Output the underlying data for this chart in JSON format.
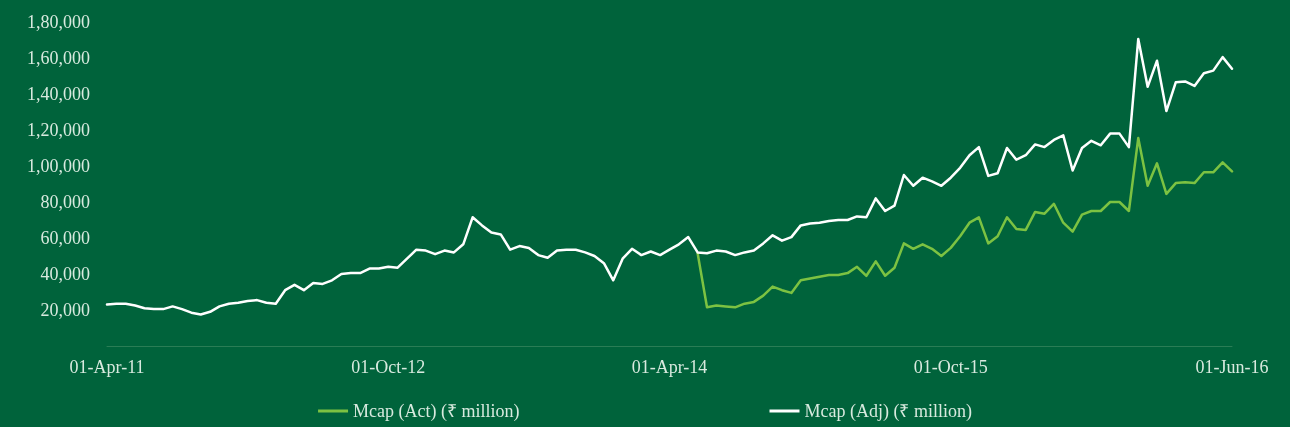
{
  "chart_data": {
    "type": "line",
    "categories": [
      "01-Apr-11",
      null,
      null,
      null,
      null,
      null,
      null,
      null,
      null,
      null,
      null,
      null,
      null,
      null,
      null,
      null,
      null,
      null,
      null,
      null,
      null,
      null,
      null,
      null,
      null,
      null,
      null,
      null,
      null,
      null,
      "01-Oct-12",
      null,
      null,
      null,
      null,
      null,
      null,
      null,
      null,
      null,
      null,
      null,
      null,
      null,
      null,
      null,
      null,
      null,
      null,
      null,
      null,
      null,
      null,
      null,
      null,
      null,
      null,
      null,
      null,
      null,
      "01-Apr-14",
      null,
      null,
      null,
      null,
      null,
      null,
      null,
      null,
      null,
      null,
      null,
      null,
      null,
      null,
      null,
      null,
      null,
      null,
      null,
      null,
      null,
      null,
      null,
      null,
      null,
      null,
      null,
      null,
      null,
      "01-Oct-15",
      null,
      null,
      null,
      null,
      null,
      null,
      null,
      null,
      null,
      null,
      null,
      null,
      null,
      null,
      null,
      null,
      null,
      null,
      null,
      null,
      null,
      null,
      null,
      null,
      null,
      null,
      null,
      null,
      null,
      "01-Jun-16"
    ],
    "series": [
      {
        "name": "Mcap (Act) (₹ million)",
        "color": "#7cc242",
        "values": [
          null,
          null,
          null,
          null,
          null,
          null,
          null,
          null,
          null,
          null,
          null,
          null,
          null,
          null,
          null,
          null,
          null,
          null,
          null,
          null,
          null,
          null,
          null,
          null,
          null,
          null,
          null,
          null,
          null,
          null,
          null,
          null,
          null,
          null,
          null,
          null,
          null,
          null,
          null,
          null,
          null,
          null,
          null,
          null,
          null,
          null,
          null,
          null,
          null,
          null,
          null,
          null,
          null,
          null,
          null,
          null,
          null,
          null,
          null,
          null,
          null,
          null,
          null,
          51500,
          21500,
          22500,
          22000,
          21500,
          23500,
          24500,
          28000,
          33000,
          31000,
          29500,
          36500,
          37500,
          38500,
          39500,
          39500,
          40500,
          44000,
          39000,
          47000,
          39000,
          43500,
          57000,
          54000,
          56500,
          54000,
          50000,
          54500,
          61000,
          68500,
          71500,
          57000,
          61000,
          71500,
          65000,
          64500,
          74500,
          73500,
          79000,
          68500,
          63500,
          73000,
          75000,
          75000,
          80000,
          80000,
          75000,
          115500,
          89000,
          101500,
          84500,
          90500,
          91000,
          90500,
          96500,
          96500,
          102000,
          97000
        ]
      },
      {
        "name": "Mcap (Adj) (₹ million)",
        "color": "#ffffff",
        "values": [
          23000,
          23500,
          23500,
          22500,
          21000,
          20500,
          20500,
          22000,
          20500,
          18500,
          17500,
          19000,
          22000,
          23500,
          24000,
          25000,
          25500,
          24000,
          23500,
          31000,
          34000,
          31000,
          35000,
          34500,
          36500,
          40000,
          40500,
          40500,
          43000,
          43000,
          44000,
          43500,
          48500,
          53500,
          53000,
          51000,
          53000,
          52000,
          56500,
          71500,
          67000,
          63000,
          62000,
          53500,
          55500,
          54500,
          50500,
          49000,
          53000,
          53500,
          53500,
          52000,
          50000,
          46000,
          36500,
          48500,
          54000,
          50500,
          52500,
          50500,
          53500,
          56500,
          60500,
          52000,
          51500,
          53000,
          52500,
          50500,
          52000,
          53000,
          57000,
          61500,
          58500,
          60500,
          67000,
          68000,
          68500,
          69500,
          70000,
          70000,
          72000,
          71500,
          82000,
          75000,
          78000,
          95000,
          89000,
          93500,
          91500,
          89000,
          93500,
          99000,
          106000,
          110500,
          94500,
          96000,
          110000,
          103500,
          106000,
          112000,
          110500,
          114500,
          117000,
          97500,
          110000,
          114000,
          111500,
          118000,
          118000,
          110500,
          170500,
          144000,
          158500,
          130500,
          146500,
          147000,
          144500,
          151500,
          153000,
          160500,
          154000
        ]
      }
    ],
    "ylim": [
      0,
      180000
    ],
    "yticks": [
      {
        "value": 20000,
        "label": "20,000"
      },
      {
        "value": 40000,
        "label": "40,000"
      },
      {
        "value": 60000,
        "label": "60,000"
      },
      {
        "value": 80000,
        "label": "80,000"
      },
      {
        "value": 100000,
        "label": "1,00,000"
      },
      {
        "value": 120000,
        "label": "1,20,000"
      },
      {
        "value": 140000,
        "label": "1,40,000"
      },
      {
        "value": 160000,
        "label": "1,60,000"
      },
      {
        "value": 180000,
        "label": "1,80,000"
      }
    ],
    "grid": false,
    "legend": "bottom",
    "marker": "none",
    "line_style": "solid"
  }
}
